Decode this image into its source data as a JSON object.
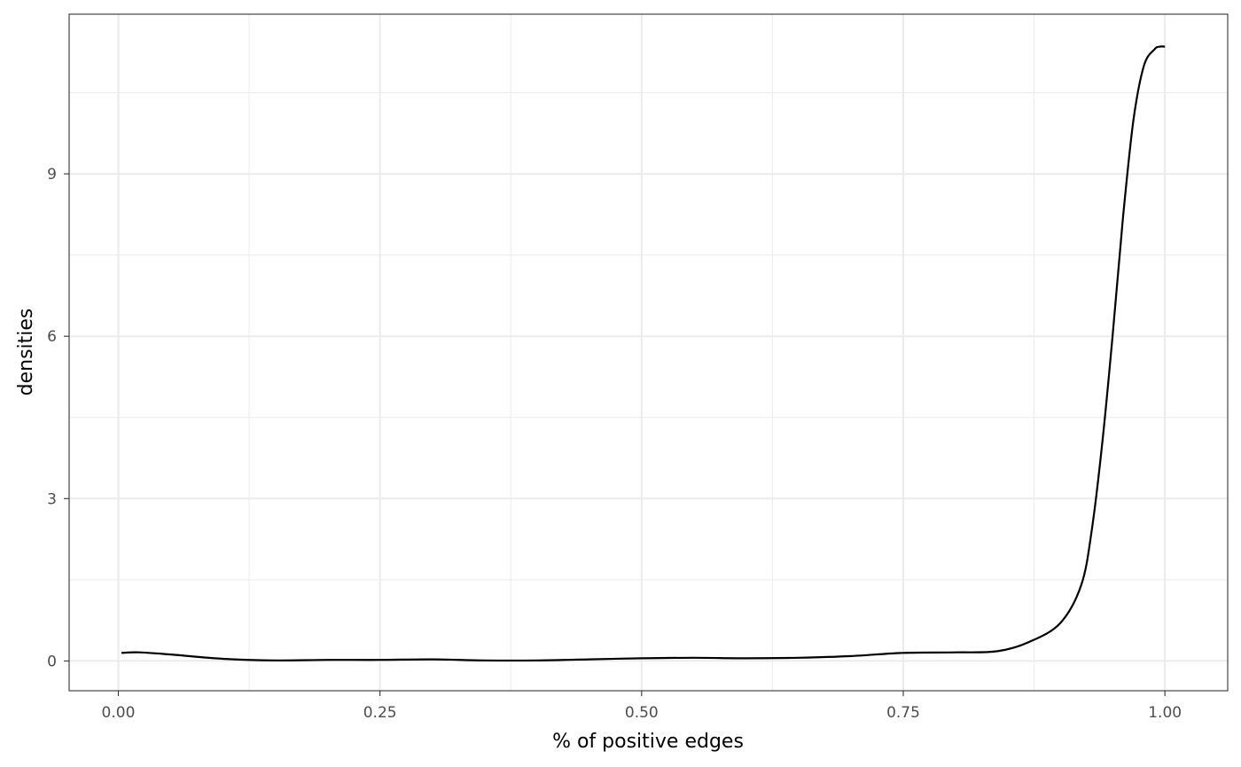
{
  "chart_data": {
    "type": "line",
    "title": "",
    "xlabel": "% of positive edges",
    "ylabel": "densities",
    "xlim": [
      -0.047,
      1.06
    ],
    "ylim": [
      -0.55,
      11.95
    ],
    "x_ticks": [
      0.0,
      0.25,
      0.5,
      0.75,
      1.0
    ],
    "x_tick_labels": [
      "0.00",
      "0.25",
      "0.50",
      "0.75",
      "1.00"
    ],
    "y_ticks": [
      0,
      3,
      6,
      9
    ],
    "y_tick_labels": [
      "0",
      "3",
      "6",
      "9"
    ],
    "grid": true,
    "legend": "none",
    "line_color": "#000000",
    "series": [
      {
        "x": [
          0.003,
          0.02,
          0.05,
          0.1,
          0.15,
          0.2,
          0.25,
          0.3,
          0.35,
          0.4,
          0.45,
          0.5,
          0.55,
          0.6,
          0.65,
          0.7,
          0.75,
          0.8,
          0.84,
          0.87,
          0.9,
          0.92,
          0.93,
          0.94,
          0.95,
          0.96,
          0.97,
          0.98,
          0.99,
          0.995,
          1.0
        ],
        "y": [
          0.15,
          0.16,
          0.12,
          0.04,
          0.01,
          0.02,
          0.02,
          0.03,
          0.01,
          0.01,
          0.03,
          0.05,
          0.06,
          0.05,
          0.06,
          0.09,
          0.15,
          0.16,
          0.18,
          0.35,
          0.7,
          1.4,
          2.4,
          4.0,
          6.0,
          8.2,
          10.0,
          11.0,
          11.3,
          11.35,
          11.35
        ]
      }
    ]
  }
}
